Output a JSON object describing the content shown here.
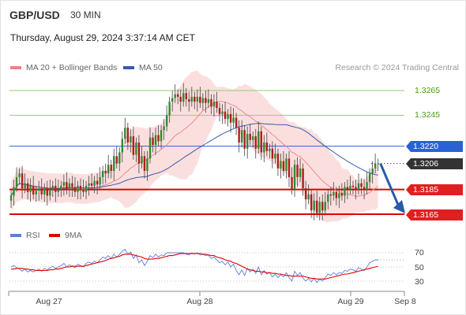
{
  "header": {
    "symbol": "GBP/USD",
    "timeframe": "30 MIN",
    "datetime": "Thursday, August 29, 2024 3:37:14 AM CET"
  },
  "legend": {
    "bollinger": "MA 20 + Bollinger Bands",
    "ma50": "MA 50",
    "credit": "Research © 2024 Trading Central",
    "rsi": "RSI",
    "rsi_ma": "9MA"
  },
  "colors": {
    "bull": "#2e8b2e",
    "bear": "#b01c1c",
    "band_fill": "#f7c4c4",
    "ma20": "#ee8a8a",
    "ma50": "#3b5aa8",
    "resistance": "#8fcf6f",
    "support": "#e00000",
    "pivot": "#2a62d6",
    "rsi_line": "#5b7fd6",
    "rsi_ma_line": "#e00000"
  },
  "chart_data": [
    {
      "type": "candlestick",
      "title": "GBP/USD",
      "x_ticks": [
        "Aug 27",
        "Aug 28",
        "Aug 29",
        "Sep 8"
      ],
      "ylim": [
        1.315,
        1.328
      ],
      "levels": [
        {
          "value": 1.3265,
          "label": "1.3265",
          "kind": "resistance"
        },
        {
          "value": 1.3245,
          "label": "1.3245",
          "kind": "resistance"
        },
        {
          "value": 1.322,
          "label": "1.3220",
          "kind": "pivot"
        },
        {
          "value": 1.3206,
          "label": "1.3206",
          "kind": "last"
        },
        {
          "value": 1.3185,
          "label": "1.3185",
          "kind": "support"
        },
        {
          "value": 1.3165,
          "label": "1.3165",
          "kind": "support"
        }
      ],
      "closes": [
        1.318,
        1.3187,
        1.3195,
        1.3198,
        1.3186,
        1.319,
        1.3183,
        1.3188,
        1.3181,
        1.3184,
        1.3186,
        1.3181,
        1.3186,
        1.318,
        1.3185,
        1.3188,
        1.3183,
        1.3185,
        1.3188,
        1.3191,
        1.3185,
        1.319,
        1.3187,
        1.3183,
        1.3188,
        1.3185,
        1.3183,
        1.3188,
        1.319,
        1.3188,
        1.3192,
        1.3189,
        1.3195,
        1.32,
        1.3198,
        1.3205,
        1.32,
        1.3212,
        1.3206,
        1.3215,
        1.3226,
        1.3235,
        1.3223,
        1.3228,
        1.3213,
        1.3223,
        1.3206,
        1.3212,
        1.32,
        1.321,
        1.3227,
        1.3221,
        1.3229,
        1.3224,
        1.3233,
        1.3236,
        1.3245,
        1.3256,
        1.3259,
        1.3262,
        1.326,
        1.3256,
        1.3263,
        1.3258,
        1.3256,
        1.326,
        1.3256,
        1.326,
        1.3255,
        1.3259,
        1.3255,
        1.3258,
        1.3252,
        1.3256,
        1.3251,
        1.3246,
        1.3248,
        1.3242,
        1.3246,
        1.3239,
        1.3243,
        1.3235,
        1.3223,
        1.3233,
        1.3218,
        1.323,
        1.3225,
        1.3228,
        1.3218,
        1.3232,
        1.3215,
        1.3223,
        1.3216,
        1.3218,
        1.321,
        1.3214,
        1.3202,
        1.3208,
        1.32,
        1.321,
        1.3195,
        1.3185,
        1.3205,
        1.3195,
        1.3202,
        1.3186,
        1.3177,
        1.3181,
        1.3168,
        1.3176,
        1.3166,
        1.3175,
        1.3168,
        1.3175,
        1.3181,
        1.318,
        1.3183,
        1.3178,
        1.3182,
        1.318,
        1.3187,
        1.3185,
        1.3188,
        1.3187,
        1.3185,
        1.319,
        1.3187,
        1.3185,
        1.3191,
        1.3198,
        1.3202,
        1.3206,
        1.3206
      ],
      "forecast_target": 1.3165
    },
    {
      "type": "line",
      "title": "RSI",
      "ylim": [
        20,
        80
      ],
      "y_ticks": [
        70,
        50,
        30
      ],
      "series": [
        {
          "name": "RSI",
          "values": [
            50,
            52,
            49,
            47,
            44,
            47,
            43,
            45,
            43,
            45,
            47,
            44,
            48,
            46,
            49,
            51,
            48,
            50,
            52,
            55,
            50,
            53,
            51,
            49,
            54,
            52,
            50,
            55,
            57,
            55,
            58,
            56,
            60,
            64,
            62,
            66,
            62,
            68,
            64,
            68,
            72,
            75,
            68,
            71,
            62,
            67,
            56,
            60,
            52,
            58,
            66,
            63,
            68,
            64,
            67,
            66,
            70,
            70,
            70,
            70,
            70,
            70,
            70,
            68,
            67,
            70,
            68,
            70,
            67,
            68,
            66,
            67,
            62,
            64,
            60,
            56,
            58,
            53,
            57,
            50,
            54,
            45,
            39,
            46,
            38,
            48,
            43,
            47,
            41,
            50,
            39,
            45,
            40,
            42,
            36,
            40,
            35,
            39,
            36,
            42,
            35,
            30,
            44,
            38,
            42,
            34,
            30,
            34,
            29,
            34,
            28,
            33,
            30,
            35,
            40,
            38,
            42,
            39,
            42,
            41,
            45,
            44,
            47,
            46,
            44,
            49,
            47,
            45,
            50,
            56,
            58,
            60,
            60
          ]
        },
        {
          "name": "9MA",
          "values": [
            47,
            47,
            48,
            48,
            48,
            47,
            47,
            46,
            46,
            45,
            45,
            45,
            45,
            45,
            46,
            46,
            47,
            47,
            48,
            49,
            50,
            50,
            51,
            51,
            51,
            51,
            51,
            52,
            53,
            54,
            55,
            56,
            57,
            58,
            59,
            61,
            62,
            63,
            64,
            65,
            67,
            68,
            68,
            68,
            67,
            66,
            65,
            64,
            62,
            61,
            61,
            61,
            62,
            62,
            63,
            64,
            65,
            66,
            66,
            67,
            68,
            69,
            69,
            69,
            69,
            69,
            69,
            69,
            69,
            68,
            68,
            67,
            66,
            66,
            64,
            63,
            62,
            60,
            59,
            58,
            56,
            55,
            53,
            51,
            49,
            47,
            46,
            45,
            44,
            44,
            43,
            43,
            42,
            42,
            41,
            41,
            40,
            40,
            39,
            38,
            38,
            37,
            37,
            37,
            37,
            37,
            36,
            35,
            34,
            34,
            33,
            33,
            33,
            33,
            34,
            35,
            36,
            37,
            38,
            39,
            40,
            40,
            41,
            42,
            43,
            44,
            45,
            46,
            47,
            48,
            49,
            50,
            51
          ]
        }
      ]
    }
  ]
}
